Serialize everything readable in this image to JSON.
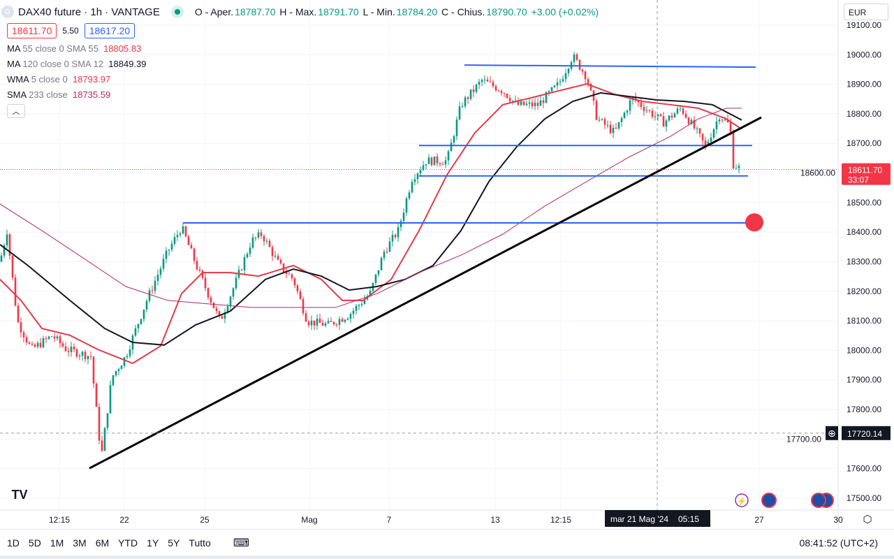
{
  "header": {
    "logo_letter": "G",
    "title": "DAX40 future · 1h · VANTAGE",
    "o_label": "O - Aper.",
    "o": "18787.70",
    "h_label": "H - Max.",
    "h": "18791.70",
    "l_label": "L - Min.",
    "l": "18784.20",
    "c_label": "C - Chius.",
    "c": "18790.70",
    "change": "+3.00 (+0.02%)"
  },
  "bid": "18611.70",
  "spread": "5.50",
  "ask": "18617.20",
  "indicators": [
    {
      "name": "MA",
      "params": "55 close 0 SMA 55",
      "value": "18805.83",
      "color": "#e53945"
    },
    {
      "name": "MA",
      "params": "120 close 0 SMA 12",
      "value": "18849.39",
      "color": "#131722"
    },
    {
      "name": "WMA",
      "params": "5 close 0",
      "value": "18793.97",
      "color": "#e53945"
    },
    {
      "name": "SMA",
      "params": "233 close",
      "value": "18735.59",
      "color": "#b02a63"
    }
  ],
  "currency": "EUR",
  "timeframes": [
    "1D",
    "5D",
    "1M",
    "3M",
    "6M",
    "YTD",
    "1Y",
    "5Y",
    "Tutto"
  ],
  "clock": "08:41:52 (UTC+2)",
  "chart_data": {
    "type": "candlestick",
    "ylim": [
      17470,
      19130
    ],
    "y_ticks": [
      "19100.00",
      "19000.00",
      "18900.00",
      "18800.00",
      "18700.00",
      "18600.00",
      "18500.00",
      "18400.00",
      "18300.00",
      "18200.00",
      "18100.00",
      "18000.00",
      "17900.00",
      "17800.00",
      "17700.00",
      "17600.00",
      "17500.00"
    ],
    "x_labels": [
      {
        "x": 17,
        "label": "12:15"
      },
      {
        "x": 35.6,
        "label": "22"
      },
      {
        "x": 58.6,
        "label": "25"
      },
      {
        "x": 88.6,
        "label": "Mag"
      },
      {
        "x": 111.4,
        "label": "7"
      },
      {
        "x": 141.8,
        "label": "13"
      },
      {
        "x": 160.6,
        "label": "12:15"
      },
      {
        "x": 217.4,
        "label": "27"
      },
      {
        "x": 240,
        "label": "30"
      }
    ],
    "price_path": [
      [
        0,
        18300
      ],
      [
        2,
        18405
      ],
      [
        5,
        18098
      ],
      [
        9,
        18003
      ],
      [
        15,
        18050
      ],
      [
        19,
        18003
      ],
      [
        26,
        17980
      ],
      [
        29,
        17637
      ],
      [
        32,
        17909
      ],
      [
        36,
        17980
      ],
      [
        42,
        18169
      ],
      [
        48,
        18334
      ],
      [
        52,
        18417
      ],
      [
        57,
        18263
      ],
      [
        63,
        18098
      ],
      [
        67,
        18216
      ],
      [
        72,
        18370
      ],
      [
        75,
        18393
      ],
      [
        80,
        18287
      ],
      [
        84,
        18240
      ],
      [
        88,
        18098
      ],
      [
        94,
        18086
      ],
      [
        100,
        18121
      ],
      [
        106,
        18193
      ],
      [
        110,
        18334
      ],
      [
        114,
        18405
      ],
      [
        118,
        18582
      ],
      [
        122,
        18641
      ],
      [
        128,
        18641
      ],
      [
        132,
        18830
      ],
      [
        138,
        18913
      ],
      [
        144,
        18878
      ],
      [
        148,
        18830
      ],
      [
        154,
        18830
      ],
      [
        160,
        18901
      ],
      [
        164,
        18996
      ],
      [
        168,
        18925
      ],
      [
        171,
        18783
      ],
      [
        176,
        18736
      ],
      [
        181,
        18854
      ],
      [
        186,
        18807
      ],
      [
        190,
        18771
      ],
      [
        195,
        18819
      ],
      [
        199,
        18748
      ],
      [
        202,
        18689
      ],
      [
        206,
        18795
      ],
      [
        209,
        18760
      ],
      [
        210,
        18630
      ],
      [
        212.4,
        18611
      ]
    ],
    "series": [
      {
        "name": "MA 55",
        "color": "#e53945",
        "x": [
          0,
          6,
          12,
          20,
          28,
          38,
          46,
          52,
          58,
          66,
          74,
          84,
          92,
          98,
          104,
          112,
          120,
          128,
          136,
          144,
          152,
          160,
          168,
          176,
          184,
          192,
          200,
          208,
          212.4
        ],
        "values": [
          18240,
          18169,
          18074,
          18051,
          18003,
          17956,
          18015,
          18192,
          18263,
          18263,
          18251,
          18287,
          18240,
          18169,
          18169,
          18240,
          18405,
          18594,
          18736,
          18831,
          18854,
          18878,
          18901,
          18866,
          18842,
          18831,
          18819,
          18783,
          18748
        ]
      },
      {
        "name": "MA 120",
        "color": "#131722",
        "x": [
          0,
          8,
          20,
          30,
          38,
          47,
          56,
          66,
          76,
          84,
          92,
          100,
          108,
          116,
          124,
          132,
          140,
          148,
          156,
          164,
          172,
          180,
          188,
          196,
          204,
          212.4
        ],
        "values": [
          18358,
          18287,
          18169,
          18074,
          18027,
          18018,
          18086,
          18133,
          18240,
          18275,
          18251,
          18204,
          18216,
          18240,
          18287,
          18405,
          18571,
          18689,
          18783,
          18842,
          18871,
          18859,
          18847,
          18842,
          18831,
          18779
        ]
      },
      {
        "name": "SMA 233",
        "color": "#b02a63",
        "x": [
          0,
          12,
          24,
          36,
          48,
          60,
          72,
          84,
          96,
          108,
          120,
          132,
          144,
          156,
          168,
          180,
          192,
          200,
          208,
          212.4
        ],
        "values": [
          18495,
          18405,
          18311,
          18216,
          18169,
          18157,
          18145,
          18145,
          18145,
          18192,
          18263,
          18322,
          18393,
          18488,
          18571,
          18653,
          18724,
          18783,
          18819,
          18819
        ]
      }
    ],
    "drawings": [
      {
        "type": "hline",
        "color": "#2962ff",
        "x": [
          133,
          216.4
        ],
        "values": [
          18965,
          18958
        ]
      },
      {
        "type": "hline",
        "color": "#2962ff",
        "x": [
          120,
          215.4
        ],
        "values": [
          18693,
          18693
        ]
      },
      {
        "type": "hline",
        "color": "#2962ff",
        "x": [
          120,
          214.2
        ],
        "values": [
          18590,
          18590
        ]
      },
      {
        "type": "hline",
        "color": "#2962ff",
        "x": [
          52.4,
          215
        ],
        "values": [
          18431,
          18431
        ]
      },
      {
        "type": "trendline",
        "color": "#000000",
        "x": [
          25.6,
          218
        ],
        "values": [
          17601,
          18788
        ]
      }
    ],
    "alert_dot": {
      "x": 216,
      "value": 18433,
      "color": "#f23645"
    },
    "last_price": {
      "label": "18611.70",
      "countdown": "33:07",
      "value": 18611.7,
      "color": "#f23645"
    },
    "crosshair": {
      "x": 188.2,
      "value": 17720.14,
      "price_label": "17720.14",
      "time_label": "mar 21 Mag '24",
      "time_label2": "05:15"
    }
  }
}
